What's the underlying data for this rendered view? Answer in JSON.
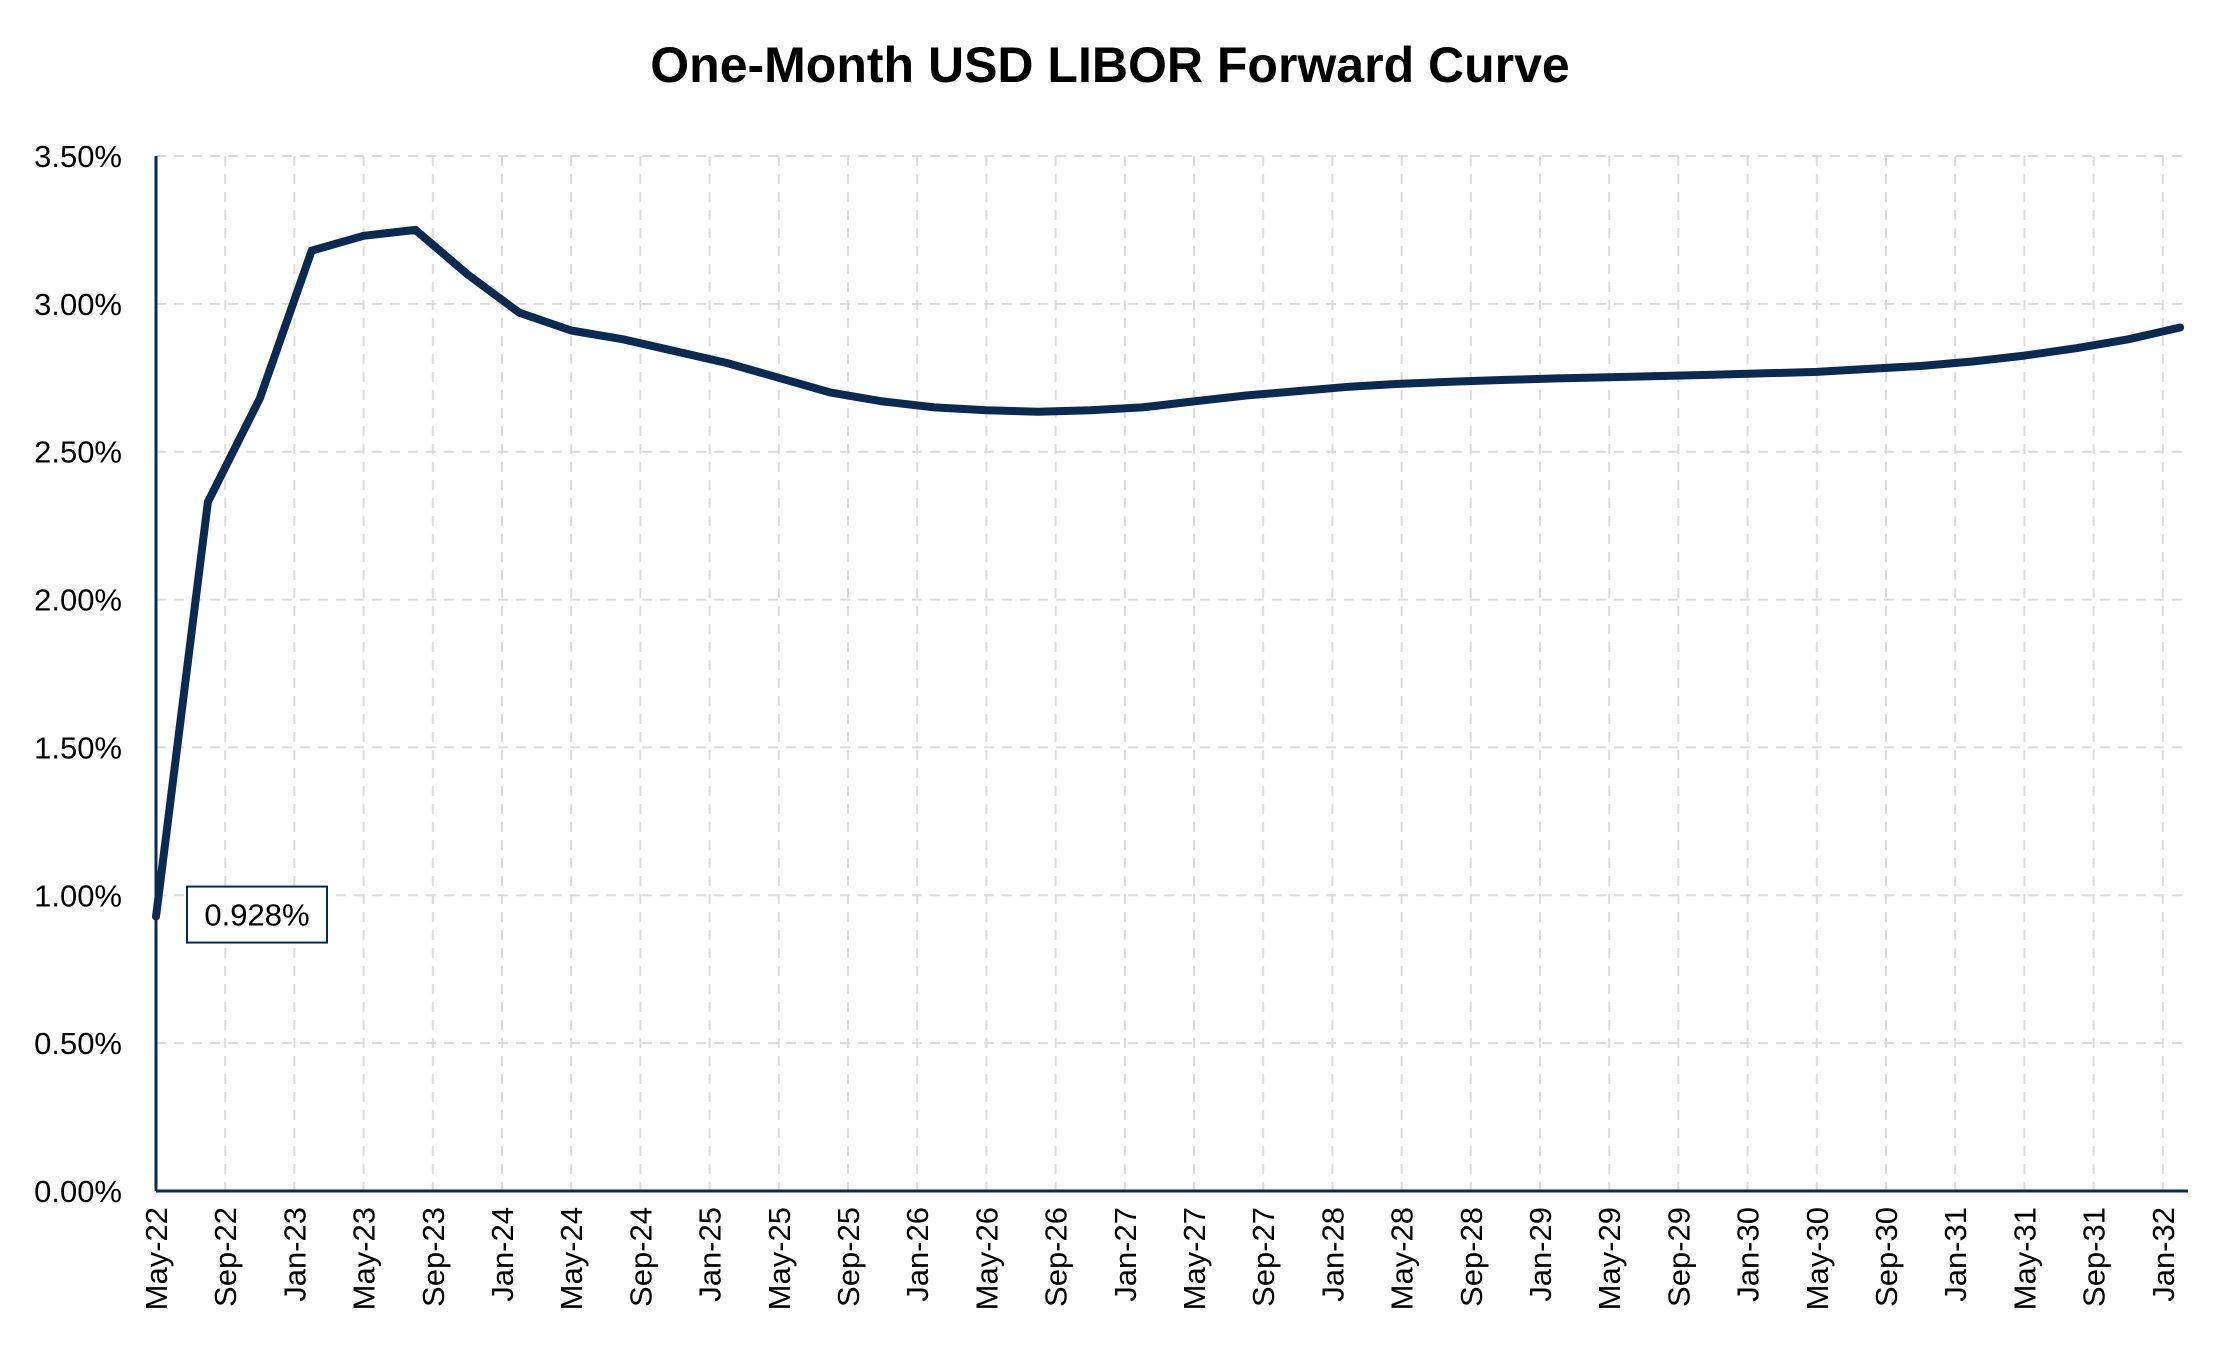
{
  "chart_data": {
    "type": "line",
    "title": "One-Month USD LIBOR Forward Curve",
    "xlabel": "",
    "ylabel": "",
    "x_tick_labels": [
      "May-22",
      "Sep-22",
      "Jan-23",
      "May-23",
      "Sep-23",
      "Jan-24",
      "May-24",
      "Sep-24",
      "Jan-25",
      "May-25",
      "Sep-25",
      "Jan-26",
      "May-26",
      "Sep-26",
      "Jan-27",
      "May-27",
      "Sep-27",
      "Jan-28",
      "May-28",
      "Sep-28",
      "Jan-29",
      "May-29",
      "Sep-29",
      "Jan-30",
      "May-30",
      "Sep-30",
      "Jan-31",
      "May-31",
      "Sep-31",
      "Jan-32"
    ],
    "y_tick_labels": [
      "0.00%",
      "0.50%",
      "1.00%",
      "1.50%",
      "2.00%",
      "2.50%",
      "3.00%",
      "3.50%"
    ],
    "ylim": [
      0,
      3.5
    ],
    "y_unit": "%",
    "grid": true,
    "series": [
      {
        "color": "#0b2a52",
        "points": [
          [
            "2022-05",
            0.928
          ],
          [
            "2022-08",
            2.33
          ],
          [
            "2022-11",
            2.68
          ],
          [
            "2023-02",
            3.18
          ],
          [
            "2023-05",
            3.23
          ],
          [
            "2023-08",
            3.25
          ],
          [
            "2023-11",
            3.1
          ],
          [
            "2024-02",
            2.97
          ],
          [
            "2024-05",
            2.91
          ],
          [
            "2024-08",
            2.88
          ],
          [
            "2024-11",
            2.84
          ],
          [
            "2025-02",
            2.8
          ],
          [
            "2025-05",
            2.75
          ],
          [
            "2025-08",
            2.7
          ],
          [
            "2025-11",
            2.67
          ],
          [
            "2026-02",
            2.65
          ],
          [
            "2026-05",
            2.64
          ],
          [
            "2026-08",
            2.635
          ],
          [
            "2026-11",
            2.64
          ],
          [
            "2027-02",
            2.65
          ],
          [
            "2027-05",
            2.67
          ],
          [
            "2027-08",
            2.69
          ],
          [
            "2027-11",
            2.705
          ],
          [
            "2028-02",
            2.72
          ],
          [
            "2028-05",
            2.73
          ],
          [
            "2028-08",
            2.737
          ],
          [
            "2028-11",
            2.743
          ],
          [
            "2029-02",
            2.748
          ],
          [
            "2029-05",
            2.752
          ],
          [
            "2029-08",
            2.756
          ],
          [
            "2029-11",
            2.76
          ],
          [
            "2030-02",
            2.765
          ],
          [
            "2030-05",
            2.77
          ],
          [
            "2030-08",
            2.78
          ],
          [
            "2030-11",
            2.79
          ],
          [
            "2031-02",
            2.805
          ],
          [
            "2031-05",
            2.825
          ],
          [
            "2031-08",
            2.85
          ],
          [
            "2031-11",
            2.88
          ],
          [
            "2032-02",
            2.92
          ]
        ]
      }
    ],
    "data_label": {
      "value": "0.928%"
    }
  }
}
